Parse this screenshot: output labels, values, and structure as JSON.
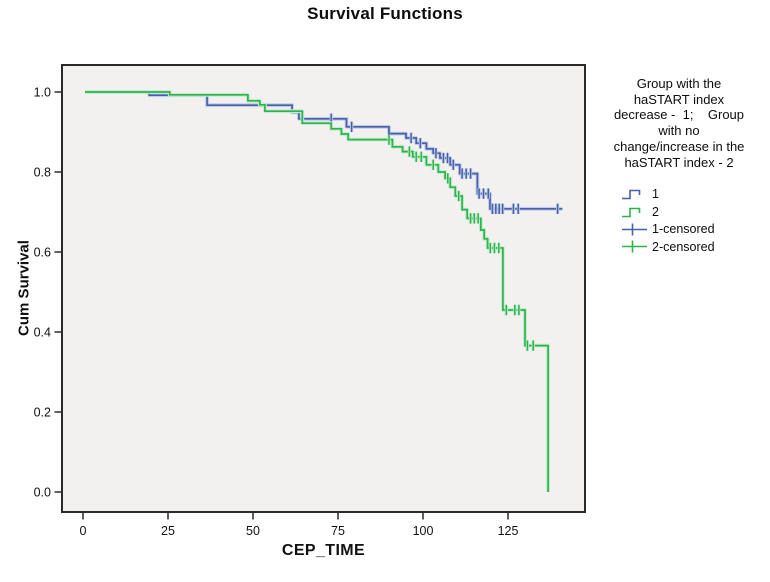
{
  "title": "Survival Functions",
  "x_axis_title": "CEP_TIME",
  "y_axis_title": "Cum Survival",
  "legend": {
    "title": "Group with the\nhaSTART index\ndecrease -  1;    Group\nwith no\nchange/increase in the\nhaSTART index - 2",
    "entries": [
      {
        "label": "1",
        "glyph": "step-line",
        "group": "group1"
      },
      {
        "label": "2",
        "glyph": "step-line",
        "group": "group2"
      },
      {
        "label": "1-censored",
        "glyph": "plus",
        "group": "group1"
      },
      {
        "label": "2-censored",
        "glyph": "plus",
        "group": "group2"
      }
    ]
  },
  "colors": {
    "group1": "#4661a9",
    "group1_halo": "#c3cde9",
    "group2": "#2cb44b",
    "group2_halo": "#c4ead0",
    "plot_bg": "#f2f1ef",
    "frame": "#2a2a2a",
    "text": "#111111"
  },
  "chart_data": {
    "type": "line",
    "subtype": "kaplan-meier-step",
    "title": "Survival Functions",
    "xlabel": "CEP_TIME",
    "ylabel": "Cum Survival",
    "xlim": [
      -6,
      148
    ],
    "ylim": [
      -0.05,
      1.07
    ],
    "x_ticks": [
      0,
      25,
      50,
      75,
      100,
      125
    ],
    "y_ticks": [
      0,
      0.2,
      0.4,
      0.6,
      0.8,
      1
    ],
    "grid": false,
    "legend_position": "right",
    "series": [
      {
        "name": "1",
        "color_key": "group1",
        "steps": [
          [
            0.6,
            1.0
          ],
          [
            19.5,
            0.992
          ],
          [
            36.5,
            0.967
          ],
          [
            61.5,
            0.949
          ],
          [
            63.5,
            0.933
          ],
          [
            77.5,
            0.913
          ],
          [
            90,
            0.896
          ],
          [
            95,
            0.885
          ],
          [
            98,
            0.872
          ],
          [
            101,
            0.858
          ],
          [
            103,
            0.847
          ],
          [
            105,
            0.835
          ],
          [
            108,
            0.818
          ],
          [
            110.8,
            0.796
          ],
          [
            116,
            0.746
          ],
          [
            119.7,
            0.708
          ],
          [
            141,
            0.708
          ]
        ],
        "censored": [
          [
            73,
            0.933
          ],
          [
            79,
            0.913
          ],
          [
            96.5,
            0.885
          ],
          [
            99.2,
            0.872
          ],
          [
            103.8,
            0.847
          ],
          [
            106,
            0.835
          ],
          [
            107.2,
            0.835
          ],
          [
            108.9,
            0.818
          ],
          [
            111.5,
            0.796
          ],
          [
            112.7,
            0.796
          ],
          [
            114,
            0.796
          ],
          [
            116.5,
            0.746
          ],
          [
            117.8,
            0.746
          ],
          [
            119.2,
            0.746
          ],
          [
            120.4,
            0.708
          ],
          [
            121.4,
            0.708
          ],
          [
            122.4,
            0.708
          ],
          [
            123.4,
            0.708
          ],
          [
            126.6,
            0.708
          ],
          [
            128,
            0.708
          ],
          [
            139.6,
            0.708
          ]
        ]
      },
      {
        "name": "2",
        "color_key": "group2",
        "steps": [
          [
            0.6,
            1.0
          ],
          [
            25.5,
            0.993
          ],
          [
            48.5,
            0.978
          ],
          [
            52,
            0.968
          ],
          [
            53.5,
            0.952
          ],
          [
            64.5,
            0.922
          ],
          [
            73,
            0.908
          ],
          [
            76,
            0.895
          ],
          [
            78,
            0.881
          ],
          [
            91,
            0.863
          ],
          [
            94,
            0.851
          ],
          [
            97,
            0.838
          ],
          [
            101,
            0.818
          ],
          [
            104.5,
            0.8
          ],
          [
            106.5,
            0.784
          ],
          [
            108,
            0.762
          ],
          [
            109.5,
            0.74
          ],
          [
            111.5,
            0.706
          ],
          [
            113,
            0.684
          ],
          [
            117,
            0.655
          ],
          [
            118,
            0.633
          ],
          [
            119,
            0.61
          ],
          [
            123.5,
            0.455
          ],
          [
            130,
            0.366
          ],
          [
            136.8,
            0.0
          ]
        ],
        "censored": [
          [
            90,
            0.881
          ],
          [
            96,
            0.851
          ],
          [
            98,
            0.838
          ],
          [
            99.5,
            0.838
          ],
          [
            103,
            0.818
          ],
          [
            107.3,
            0.784
          ],
          [
            110.5,
            0.74
          ],
          [
            114,
            0.684
          ],
          [
            115.1,
            0.684
          ],
          [
            116.2,
            0.684
          ],
          [
            119.8,
            0.61
          ],
          [
            121,
            0.61
          ],
          [
            122.3,
            0.61
          ],
          [
            124.5,
            0.455
          ],
          [
            127,
            0.455
          ],
          [
            128.2,
            0.455
          ],
          [
            130.7,
            0.366
          ],
          [
            132.4,
            0.366
          ]
        ]
      }
    ]
  }
}
